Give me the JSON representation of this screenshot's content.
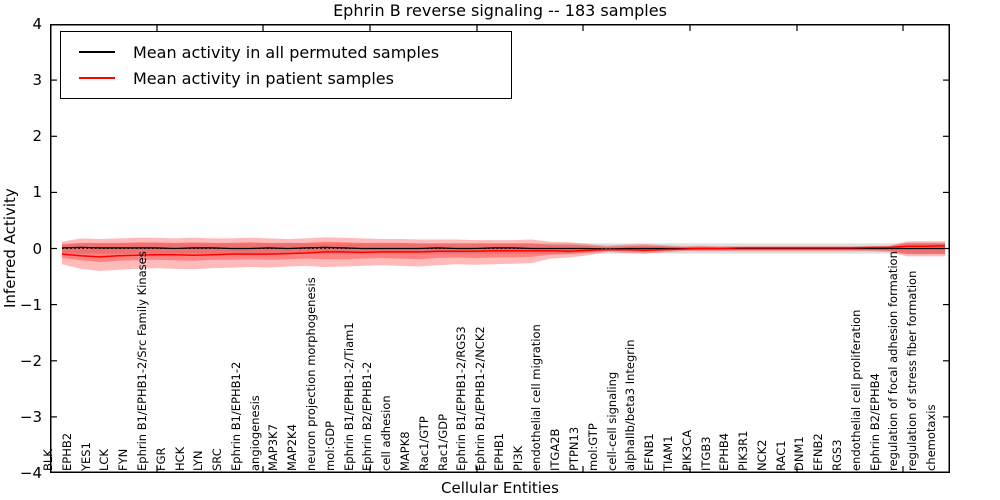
{
  "figure": {
    "title": "Ephrin B reverse signaling -- 183 samples",
    "xlabel": "Cellular Entities",
    "ylabel": "Inferred Activity"
  },
  "legend": {
    "items": [
      {
        "label": "Mean activity in all permuted samples",
        "color": "#000000"
      },
      {
        "label": "Mean activity in patient samples",
        "color": "#ff0000"
      }
    ]
  },
  "chart_data": {
    "type": "line",
    "title": "Ephrin B reverse signaling -- 183 samples",
    "xlabel": "Cellular Entities",
    "ylabel": "Inferred Activity",
    "ylim": [
      -4,
      4
    ],
    "yticks": [
      4,
      3,
      2,
      1,
      0,
      -1,
      -2,
      -3,
      -4
    ],
    "grid": false,
    "legend_position": "upper left",
    "zero_line": {
      "style": "dotted",
      "color": "#000000",
      "y": 0
    },
    "categories": [
      "BLK",
      "EPHB2",
      "YES1",
      "LCK",
      "FYN",
      "Ephrin B1/EPHB1-2/Src Family Kinases",
      "FGR",
      "HCK",
      "LYN",
      "SRC",
      "Ephrin B1/EPHB1-2",
      "angiogenesis",
      "MAP3K7",
      "MAP2K4",
      "neuron projection morphogenesis",
      "mol:GDP",
      "Ephrin B1/EPHB1-2/Tiam1",
      "Ephrin B2/EPHB1-2",
      "cell adhesion",
      "MAPK8",
      "Rac1/GTP",
      "Rac1/GDP",
      "Ephrin B1/EPHB1-2/RGS3",
      "Ephrin B1/EPHB1-2/NCK2",
      "EPHB1",
      "PI3K",
      "endothelial cell migration",
      "ITGA2B",
      "PTPN13",
      "mol:GTP",
      "cell-cell signaling",
      "alphaIIb/beta3 Integrin",
      "EFNB1",
      "TIAM1",
      "PIK3CA",
      "ITGB3",
      "EPHB4",
      "PIK3R1",
      "NCK2",
      "RAC1",
      "DNM1",
      "EFNB2",
      "RGS3",
      "endothelial cell proliferation",
      "Ephrin B2/EPHB4",
      "regulation of focal adhesion formation",
      "regulation of stress fiber formation",
      "chemotaxis"
    ],
    "series": [
      {
        "name": "Mean activity in all permuted samples",
        "color": "#000000",
        "style": "solid",
        "width": 1.3,
        "values": [
          0.01,
          0.02,
          0.01,
          0.01,
          0.01,
          0.01,
          0.0,
          0.01,
          0.01,
          0.0,
          0.0,
          0.01,
          0.0,
          0.01,
          0.02,
          0.01,
          0.0,
          0.0,
          0.0,
          0.0,
          0.01,
          0.0,
          0.0,
          0.01,
          0.01,
          0.0,
          0.0,
          0.0,
          0.0,
          -0.01,
          0.0,
          0.0,
          0.0,
          0.0,
          0.0,
          0.0,
          0.0,
          0.0,
          0.0,
          0.0,
          0.0,
          0.0,
          0.0,
          0.0,
          0.0,
          0.0,
          0.0,
          0.0
        ]
      },
      {
        "name": "Mean activity in patient samples",
        "color": "#ff0000",
        "style": "solid",
        "width": 1.5,
        "values": [
          -0.1,
          -0.13,
          -0.15,
          -0.13,
          -0.12,
          -0.11,
          -0.11,
          -0.12,
          -0.11,
          -0.1,
          -0.1,
          -0.1,
          -0.09,
          -0.08,
          -0.06,
          -0.06,
          -0.07,
          -0.06,
          -0.06,
          -0.06,
          -0.05,
          -0.05,
          -0.05,
          -0.04,
          -0.04,
          -0.04,
          -0.04,
          -0.05,
          -0.03,
          -0.02,
          -0.02,
          -0.03,
          -0.02,
          -0.01,
          0.0,
          0.0,
          0.01,
          0.01,
          0.01,
          0.01,
          0.01,
          0.01,
          0.01,
          0.02,
          0.02,
          0.04,
          0.04,
          0.05
        ]
      }
    ],
    "bands": [
      {
        "name": "permuted-samples-range",
        "color": "#aaaaaa",
        "opacity": 0.38,
        "upper": [
          0.09,
          0.09,
          0.09,
          0.09,
          0.09,
          0.09,
          0.09,
          0.09,
          0.09,
          0.09,
          0.09,
          0.09,
          0.09,
          0.09,
          0.09,
          0.09,
          0.09,
          0.09,
          0.09,
          0.09,
          0.09,
          0.09,
          0.09,
          0.09,
          0.09,
          0.09,
          0.09,
          0.09,
          0.09,
          0.09,
          0.09,
          0.09,
          0.09,
          0.09,
          0.09,
          0.09,
          0.09,
          0.09,
          0.09,
          0.09,
          0.09,
          0.09,
          0.09,
          0.09,
          0.09,
          0.09,
          0.09,
          0.09
        ],
        "lower": [
          -0.09,
          -0.09,
          -0.09,
          -0.09,
          -0.09,
          -0.09,
          -0.09,
          -0.09,
          -0.09,
          -0.09,
          -0.09,
          -0.09,
          -0.09,
          -0.09,
          -0.09,
          -0.09,
          -0.09,
          -0.09,
          -0.09,
          -0.09,
          -0.09,
          -0.09,
          -0.09,
          -0.09,
          -0.09,
          -0.09,
          -0.09,
          -0.09,
          -0.09,
          -0.09,
          -0.09,
          -0.09,
          -0.09,
          -0.09,
          -0.09,
          -0.09,
          -0.09,
          -0.09,
          -0.09,
          -0.09,
          -0.09,
          -0.09,
          -0.09,
          -0.09,
          -0.09,
          -0.09,
          -0.09,
          -0.09
        ]
      },
      {
        "name": "patient-samples-range-outer",
        "color": "#ff0000",
        "opacity": 0.27,
        "upper": [
          0.12,
          0.18,
          0.17,
          0.18,
          0.19,
          0.19,
          0.18,
          0.19,
          0.18,
          0.18,
          0.19,
          0.18,
          0.17,
          0.18,
          0.2,
          0.19,
          0.18,
          0.17,
          0.17,
          0.16,
          0.16,
          0.16,
          0.15,
          0.15,
          0.15,
          0.16,
          0.12,
          0.11,
          0.08,
          0.05,
          0.07,
          0.08,
          0.06,
          0.04,
          0.05,
          0.04,
          0.04,
          0.04,
          0.04,
          0.04,
          0.04,
          0.04,
          0.04,
          0.04,
          0.05,
          0.13,
          0.13,
          0.13
        ],
        "lower": [
          -0.28,
          -0.36,
          -0.4,
          -0.38,
          -0.36,
          -0.35,
          -0.36,
          -0.37,
          -0.35,
          -0.34,
          -0.33,
          -0.34,
          -0.32,
          -0.31,
          -0.33,
          -0.32,
          -0.31,
          -0.3,
          -0.31,
          -0.32,
          -0.3,
          -0.28,
          -0.29,
          -0.28,
          -0.27,
          -0.26,
          -0.18,
          -0.16,
          -0.12,
          -0.06,
          -0.08,
          -0.09,
          -0.07,
          -0.05,
          -0.05,
          -0.05,
          -0.05,
          -0.05,
          -0.05,
          -0.05,
          -0.05,
          -0.05,
          -0.05,
          -0.05,
          -0.06,
          -0.14,
          -0.14,
          -0.14
        ]
      },
      {
        "name": "patient-samples-range-inner",
        "color": "#ff0000",
        "opacity": 0.3,
        "upper": [
          0.07,
          0.1,
          0.1,
          0.1,
          0.11,
          0.11,
          0.1,
          0.11,
          0.1,
          0.1,
          0.11,
          0.1,
          0.1,
          0.1,
          0.12,
          0.11,
          0.1,
          0.1,
          0.1,
          0.09,
          0.09,
          0.09,
          0.09,
          0.09,
          0.09,
          0.09,
          0.07,
          0.07,
          0.05,
          0.03,
          0.04,
          0.05,
          0.04,
          0.02,
          0.03,
          0.02,
          0.02,
          0.02,
          0.02,
          0.02,
          0.02,
          0.02,
          0.02,
          0.02,
          0.03,
          0.1,
          0.1,
          0.1
        ],
        "lower": [
          -0.17,
          -0.21,
          -0.24,
          -0.22,
          -0.21,
          -0.2,
          -0.21,
          -0.22,
          -0.2,
          -0.2,
          -0.19,
          -0.2,
          -0.19,
          -0.18,
          -0.19,
          -0.19,
          -0.18,
          -0.17,
          -0.18,
          -0.19,
          -0.17,
          -0.16,
          -0.17,
          -0.16,
          -0.16,
          -0.15,
          -0.11,
          -0.1,
          -0.07,
          -0.04,
          -0.05,
          -0.06,
          -0.04,
          -0.03,
          -0.03,
          -0.03,
          -0.03,
          -0.03,
          -0.03,
          -0.03,
          -0.03,
          -0.03,
          -0.03,
          -0.03,
          -0.04,
          -0.1,
          -0.1,
          -0.1
        ]
      }
    ]
  }
}
